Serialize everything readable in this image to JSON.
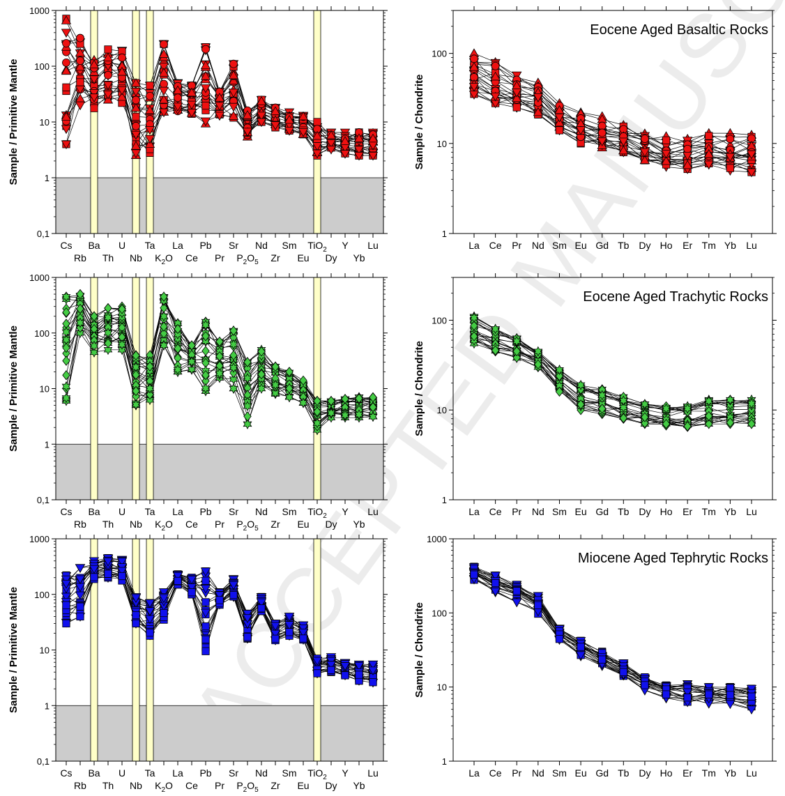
{
  "watermark": "ACCEPTED MANUSCRIPT",
  "colors": {
    "basaltic": "#ee1111",
    "trachytic": "#44cc44",
    "tephrytic": "#1111ee",
    "band": "#ffffc8",
    "below_one": "#cccccc"
  },
  "chart_data": [
    {
      "type": "line",
      "panel": "spider-basaltic",
      "title": "",
      "ylabel": "Sample / Primitive Mantle",
      "ylim": [
        0.1,
        1000
      ],
      "yscale": "log",
      "ytick_labels": [
        "0,1",
        "1",
        "10",
        "100",
        "1000"
      ],
      "x": [
        "Cs",
        "Rb",
        "Ba",
        "Th",
        "U",
        "Nb",
        "Ta",
        "K2O",
        "La",
        "Ce",
        "Pb",
        "Pr",
        "Sr",
        "P2O5",
        "Nd",
        "Zr",
        "Sm",
        "Eu",
        "TiO2",
        "Dy",
        "Y",
        "Yb",
        "Lu"
      ],
      "shaded_below": 1,
      "highlight_bands": [
        "Ba",
        "Nb",
        "Ta",
        "TiO2"
      ],
      "marker": "mixed",
      "color": "#ee1111",
      "series_envelope": {
        "min": [
          4,
          20,
          15,
          25,
          22,
          2.5,
          2.5,
          15,
          15,
          14,
          9,
          13,
          12,
          5,
          10,
          8,
          7,
          6,
          2.5,
          3,
          2.7,
          2.5,
          2.5
        ],
        "max": [
          900,
          320,
          130,
          200,
          190,
          50,
          45,
          250,
          50,
          45,
          220,
          35,
          110,
          16,
          25,
          18,
          15,
          13,
          10,
          6.5,
          6.5,
          6.5,
          6.5
        ]
      }
    },
    {
      "type": "line",
      "panel": "ree-basaltic",
      "title": "Eocene Aged Basaltic Rocks",
      "ylabel": "Sample / Chondrite",
      "ylim": [
        1,
        300
      ],
      "yscale": "log",
      "ytick_labels": [
        "1",
        "10",
        "100"
      ],
      "x": [
        "La",
        "Ce",
        "Pr",
        "Nd",
        "Sm",
        "Eu",
        "Gd",
        "Tb",
        "Dy",
        "Ho",
        "Er",
        "Tm",
        "Yb",
        "Lu"
      ],
      "marker": "mixed",
      "color": "#ee1111",
      "series_envelope": {
        "min": [
          35,
          28,
          25,
          21,
          14,
          10,
          9,
          8,
          6.5,
          5.5,
          5.2,
          5.3,
          5.0,
          4.8
        ],
        "max": [
          100,
          80,
          60,
          48,
          28,
          24,
          20,
          16,
          13,
          12,
          12,
          13,
          13,
          13
        ]
      }
    },
    {
      "type": "line",
      "panel": "spider-trachytic",
      "title": "",
      "ylabel": "Sample / Primitive Mantle",
      "ylim": [
        0.1,
        1000
      ],
      "yscale": "log",
      "ytick_labels": [
        "0,1",
        "1",
        "10",
        "100",
        "1000"
      ],
      "x": [
        "Cs",
        "Rb",
        "Ba",
        "Th",
        "U",
        "Nb",
        "Ta",
        "K2O",
        "La",
        "Ce",
        "Pb",
        "Pr",
        "Sr",
        "P2O5",
        "Nd",
        "Zr",
        "Sm",
        "Eu",
        "TiO2",
        "Dy",
        "Y",
        "Yb",
        "Lu"
      ],
      "shaded_below": 1,
      "highlight_bands": [
        "Ba",
        "Nb",
        "Ta",
        "TiO2"
      ],
      "marker": "mixed",
      "color": "#44cc44",
      "series_envelope": {
        "min": [
          6,
          100,
          45,
          50,
          50,
          5,
          5,
          60,
          20,
          20,
          9,
          15,
          10,
          2.3,
          10,
          8,
          7,
          5.5,
          1.8,
          3,
          3,
          3,
          3
        ],
        "max": [
          450,
          500,
          200,
          280,
          300,
          40,
          40,
          450,
          150,
          60,
          160,
          70,
          110,
          30,
          50,
          25,
          20,
          14,
          6,
          6,
          6.5,
          7,
          7
        ]
      }
    },
    {
      "type": "line",
      "panel": "ree-trachytic",
      "title": "Eocene Aged Trachytic Rocks",
      "ylabel": "Sample / Chondrite",
      "ylim": [
        1,
        300
      ],
      "yscale": "log",
      "ytick_labels": [
        "1",
        "10",
        "100"
      ],
      "x": [
        "La",
        "Ce",
        "Pr",
        "Nd",
        "Sm",
        "Eu",
        "Gd",
        "Tb",
        "Dy",
        "Ho",
        "Er",
        "Tm",
        "Yb",
        "Lu"
      ],
      "marker": "mixed",
      "color": "#44cc44",
      "series_envelope": {
        "min": [
          55,
          45,
          38,
          30,
          16,
          10,
          9,
          8,
          7,
          6.5,
          6.5,
          7,
          7,
          7
        ],
        "max": [
          110,
          80,
          63,
          45,
          28,
          19,
          17,
          14,
          12,
          11,
          11,
          13,
          13,
          13
        ]
      }
    },
    {
      "type": "line",
      "panel": "spider-tephrytic",
      "title": "",
      "ylabel": "Sample / Primitive Mantle",
      "ylim": [
        0.1,
        1000
      ],
      "yscale": "log",
      "ytick_labels": [
        "0,1",
        "1",
        "10",
        "100",
        "1000"
      ],
      "x": [
        "Cs",
        "Rb",
        "Ba",
        "Th",
        "U",
        "Nb",
        "Ta",
        "K2O",
        "La",
        "Ce",
        "Pb",
        "Pr",
        "Sr",
        "P2O5",
        "Nd",
        "Zr",
        "Sm",
        "Eu",
        "TiO2",
        "Dy",
        "Y",
        "Yb",
        "Lu"
      ],
      "shaded_below": 1,
      "highlight_bands": [
        "Ba",
        "Nb",
        "Ta",
        "TiO2"
      ],
      "marker": "mixed",
      "color": "#1111ee",
      "series_envelope": {
        "min": [
          30,
          40,
          180,
          200,
          170,
          30,
          18,
          35,
          150,
          100,
          9.5,
          65,
          90,
          16,
          50,
          15,
          18,
          15,
          3.8,
          4,
          3.5,
          2.8,
          2.6
        ],
        "max": [
          220,
          300,
          400,
          450,
          420,
          90,
          70,
          110,
          230,
          200,
          260,
          110,
          190,
          45,
          90,
          30,
          40,
          28,
          7,
          7.5,
          6,
          5.5,
          5.5
        ]
      }
    },
    {
      "type": "line",
      "panel": "ree-tephrytic",
      "title": "Miocene Aged Tephrytic Rocks",
      "ylabel": "Sample / Chondrite",
      "ylim": [
        1,
        1000
      ],
      "yscale": "log",
      "ytick_labels": [
        "1",
        "10",
        "100",
        "1000"
      ],
      "x": [
        "La",
        "Ce",
        "Pr",
        "Nd",
        "Sm",
        "Eu",
        "Gd",
        "Tb",
        "Dy",
        "Ho",
        "Er",
        "Tm",
        "Yb",
        "Lu"
      ],
      "marker": "mixed",
      "color": "#1111ee",
      "series_envelope": {
        "min": [
          270,
          190,
          140,
          90,
          40,
          26,
          17,
          13,
          9,
          7,
          6,
          6,
          5.5,
          5
        ],
        "max": [
          420,
          320,
          240,
          170,
          65,
          42,
          30,
          21,
          14,
          11,
          11,
          10,
          10,
          9.5
        ]
      }
    }
  ],
  "element_labels": {
    "spider_top_row": [
      "Cs",
      "Ba",
      "U",
      "Ta",
      "La",
      "Pb",
      "Sr",
      "Nd",
      "Sm",
      "TiO",
      "Y",
      "Lu"
    ],
    "spider_bottom_row": [
      "Rb",
      "Th",
      "Nb",
      "K",
      "Ce",
      "Pr",
      "P",
      "Zr",
      "Eu",
      "Dy",
      "Yb"
    ],
    "subscripts": {
      "TiO": "2",
      "K": "2",
      "P": "2",
      "P_O": "5"
    },
    "k2o_suffix": "O",
    "p2o5_mid": "O",
    "ree_labels": [
      "La",
      "Ce",
      "Pr",
      "Nd",
      "Sm",
      "Eu",
      "Gd",
      "Tb",
      "Dy",
      "Ho",
      "Er",
      "Tm",
      "Yb",
      "Lu"
    ]
  }
}
